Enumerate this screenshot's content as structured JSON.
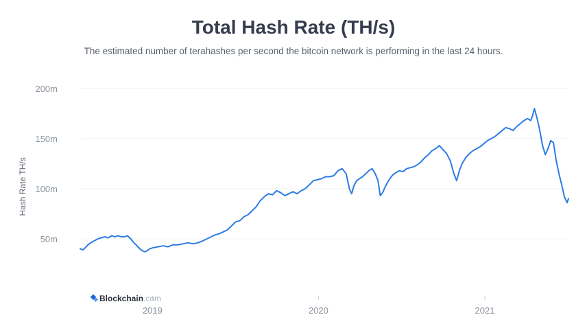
{
  "title": "Total Hash Rate (TH/s)",
  "subtitle": "The estimated number of terahashes per second the bitcoin network is performing in the last 24 hours.",
  "watermark": {
    "brand": "Blockchain",
    "suffix": ".com",
    "icon": "blockchain-logo-icon"
  },
  "colors": {
    "line": "#2c7be5",
    "grid": "#eef0f3",
    "axis_text": "#8a929e",
    "title": "#353c4e"
  },
  "chart_data": {
    "type": "line",
    "title": "Total Hash Rate (TH/s)",
    "xlabel": "",
    "ylabel": "Hash Rate TH/s",
    "xlim": [
      "2018-07-26",
      "2021-07-04"
    ],
    "ylim": [
      0,
      200000000
    ],
    "grid": true,
    "y_ticks": [
      {
        "value": 50000000,
        "label": "50m"
      },
      {
        "value": 100000000,
        "label": "100m"
      },
      {
        "value": 150000000,
        "label": "150m"
      },
      {
        "value": 200000000,
        "label": "200m"
      }
    ],
    "x_ticks": [
      {
        "value": "2019-01-01",
        "label": "2019"
      },
      {
        "value": "2020-01-01",
        "label": "2020"
      },
      {
        "value": "2021-01-01",
        "label": "2021"
      }
    ],
    "series": [
      {
        "x": [
          "2018-07-26",
          "2018-08-01",
          "2018-08-06",
          "2018-08-12",
          "2018-08-18",
          "2018-08-26",
          "2018-09-03",
          "2018-09-10",
          "2018-09-18",
          "2018-09-26",
          "2018-10-03",
          "2018-10-10",
          "2018-10-17",
          "2018-10-24",
          "2018-10-31",
          "2018-11-07",
          "2018-11-14",
          "2018-11-21",
          "2018-11-28",
          "2018-12-04",
          "2018-12-10",
          "2018-12-15",
          "2018-12-20",
          "2018-12-26",
          "2019-01-02",
          "2019-01-13",
          "2019-01-24",
          "2019-02-04",
          "2019-02-15",
          "2019-02-26",
          "2019-03-09",
          "2019-03-20",
          "2019-03-31",
          "2019-04-11",
          "2019-04-22",
          "2019-05-01",
          "2019-05-10",
          "2019-05-19",
          "2019-05-28",
          "2019-06-06",
          "2019-06-15",
          "2019-06-24",
          "2019-07-03",
          "2019-07-12",
          "2019-07-21",
          "2019-07-30",
          "2019-08-08",
          "2019-08-17",
          "2019-08-26",
          "2019-09-04",
          "2019-09-13",
          "2019-09-22",
          "2019-10-01",
          "2019-10-10",
          "2019-10-19",
          "2019-10-28",
          "2019-11-06",
          "2019-11-15",
          "2019-11-24",
          "2019-12-03",
          "2019-12-12",
          "2019-12-21",
          "2019-12-30",
          "2020-01-08",
          "2020-01-17",
          "2020-01-26",
          "2020-02-04",
          "2020-02-13",
          "2020-02-22",
          "2020-03-02",
          "2020-03-09",
          "2020-03-14",
          "2020-03-19",
          "2020-03-25",
          "2020-03-31",
          "2020-04-07",
          "2020-04-14",
          "2020-04-21",
          "2020-04-28",
          "2020-05-05",
          "2020-05-11",
          "2020-05-16",
          "2020-05-21",
          "2020-05-27",
          "2020-06-03",
          "2020-06-11",
          "2020-06-19",
          "2020-06-27",
          "2020-07-05",
          "2020-07-13",
          "2020-07-21",
          "2020-07-29",
          "2020-08-06",
          "2020-08-14",
          "2020-08-22",
          "2020-08-30",
          "2020-09-07",
          "2020-09-15",
          "2020-09-23",
          "2020-10-01",
          "2020-10-09",
          "2020-10-17",
          "2020-10-25",
          "2020-10-31",
          "2020-11-06",
          "2020-11-12",
          "2020-11-20",
          "2020-11-28",
          "2020-12-06",
          "2020-12-14",
          "2020-12-22",
          "2020-12-30",
          "2021-01-07",
          "2021-01-15",
          "2021-01-23",
          "2021-01-31",
          "2021-02-08",
          "2021-02-16",
          "2021-02-24",
          "2021-03-04",
          "2021-03-12",
          "2021-03-20",
          "2021-03-28",
          "2021-04-05",
          "2021-04-12",
          "2021-04-16",
          "2021-04-20",
          "2021-04-26",
          "2021-05-02",
          "2021-05-08",
          "2021-05-14",
          "2021-05-20",
          "2021-05-26",
          "2021-06-01",
          "2021-06-07",
          "2021-06-13",
          "2021-06-19",
          "2021-06-25",
          "2021-07-01",
          "2021-07-04"
        ],
        "values": [
          40000000,
          39000000,
          41000000,
          44000000,
          46000000,
          48000000,
          50000000,
          51000000,
          52000000,
          51000000,
          53000000,
          52000000,
          53000000,
          52000000,
          52000000,
          53000000,
          50000000,
          46000000,
          43000000,
          40000000,
          38000000,
          37000000,
          38000000,
          40000000,
          41000000,
          42000000,
          43000000,
          42000000,
          44000000,
          44000000,
          45000000,
          46000000,
          45000000,
          46000000,
          48000000,
          50000000,
          52000000,
          54000000,
          55000000,
          57000000,
          59000000,
          63000000,
          67000000,
          68000000,
          72000000,
          74000000,
          78000000,
          82000000,
          88000000,
          92000000,
          95000000,
          94000000,
          98000000,
          96000000,
          93000000,
          95000000,
          97000000,
          95000000,
          98000000,
          100000000,
          104000000,
          108000000,
          109000000,
          110000000,
          112000000,
          112000000,
          113000000,
          118000000,
          120000000,
          115000000,
          100000000,
          95000000,
          103000000,
          108000000,
          110000000,
          112000000,
          115000000,
          118000000,
          120000000,
          115000000,
          108000000,
          93000000,
          96000000,
          102000000,
          108000000,
          113000000,
          116000000,
          118000000,
          117000000,
          120000000,
          121000000,
          122000000,
          124000000,
          127000000,
          131000000,
          134000000,
          138000000,
          140000000,
          143000000,
          139000000,
          135000000,
          128000000,
          115000000,
          108000000,
          118000000,
          125000000,
          131000000,
          135000000,
          138000000,
          140000000,
          142000000,
          145000000,
          148000000,
          150000000,
          152000000,
          155000000,
          158000000,
          161000000,
          160000000,
          158000000,
          162000000,
          165000000,
          168000000,
          170000000,
          168000000,
          173000000,
          180000000,
          170000000,
          158000000,
          143000000,
          134000000,
          140000000,
          148000000,
          146000000,
          128000000,
          115000000,
          104000000,
          92000000,
          86000000,
          90000000
        ]
      }
    ]
  }
}
